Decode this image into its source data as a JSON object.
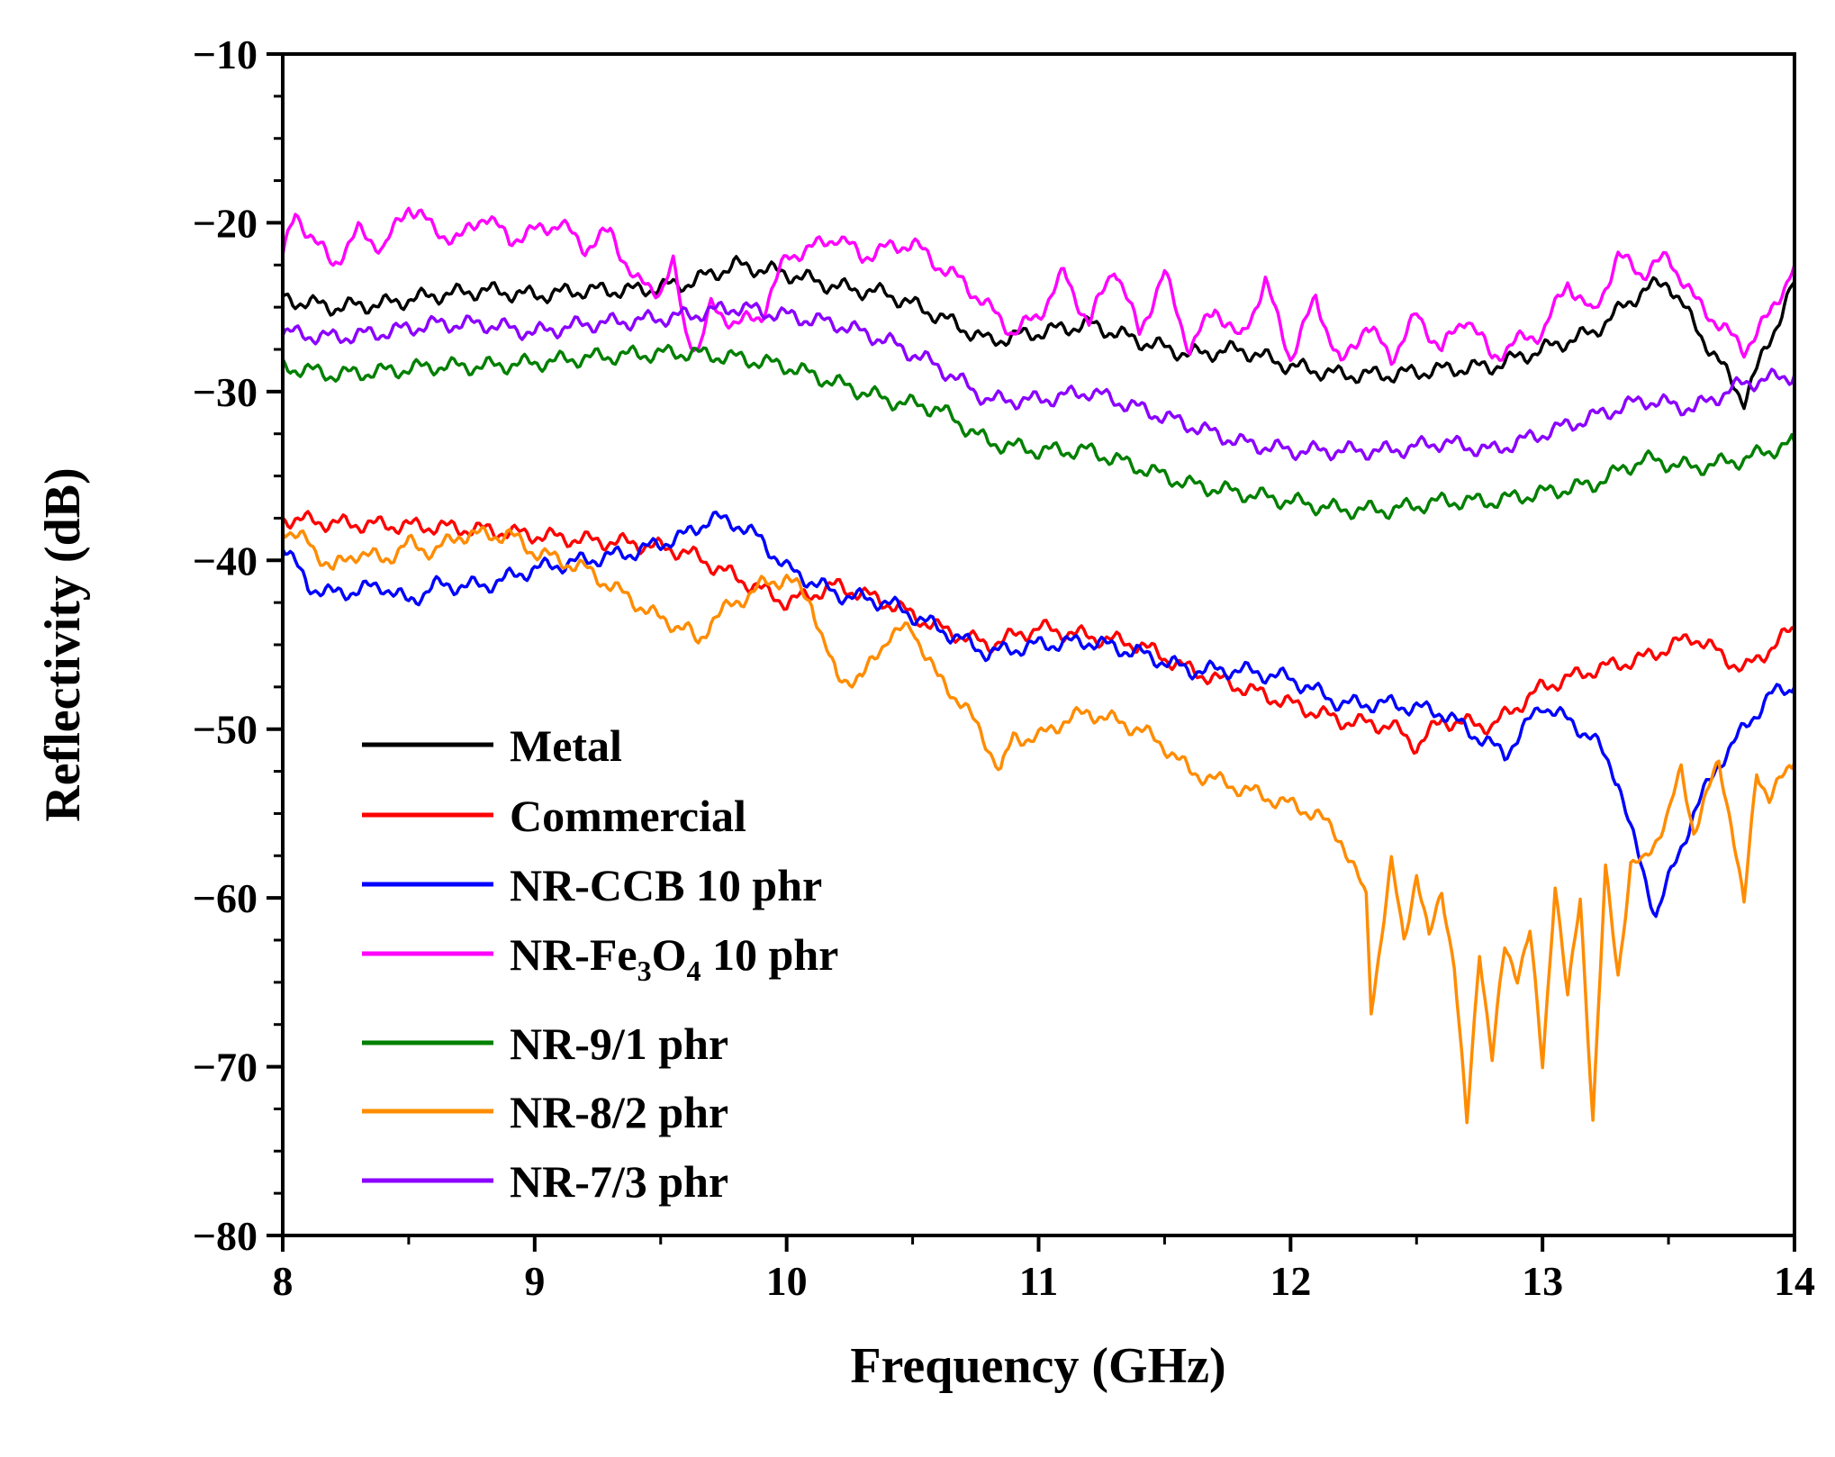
{
  "chart_data": {
    "type": "line",
    "title": "",
    "xlabel": "Frequency (GHz)",
    "ylabel": "Reflectivity (dB)",
    "xlim": [
      8,
      14
    ],
    "ylim": [
      -80,
      -10
    ],
    "x_ticks": [
      "8",
      "9",
      "10",
      "11",
      "12",
      "13",
      "14"
    ],
    "y_ticks": [
      "−10",
      "−20",
      "−30",
      "−40",
      "−50",
      "−60",
      "−70",
      "−80"
    ],
    "x_tick_values": [
      8,
      9,
      10,
      11,
      12,
      13,
      14
    ],
    "y_tick_values": [
      -10,
      -20,
      -30,
      -40,
      -50,
      -60,
      -70,
      -80
    ],
    "grid": false,
    "legend_position": "bottom-left",
    "series": [
      {
        "name": "Metal",
        "color": "#000000",
        "x": [
          8.0,
          8.2,
          8.4,
          8.6,
          8.8,
          9.0,
          9.2,
          9.4,
          9.6,
          9.8,
          10.0,
          10.2,
          10.4,
          10.6,
          10.8,
          11.0,
          11.2,
          11.4,
          11.6,
          11.8,
          12.0,
          12.2,
          12.4,
          12.6,
          12.8,
          13.0,
          13.2,
          13.4,
          13.5,
          13.6,
          13.8,
          14.0
        ],
        "y": [
          -24.5,
          -25.0,
          -24.8,
          -24.3,
          -24.0,
          -24.3,
          -24.0,
          -24.0,
          -23.6,
          -22.5,
          -23.0,
          -23.8,
          -24.2,
          -25.5,
          -27.0,
          -26.5,
          -26.0,
          -27.0,
          -27.8,
          -27.5,
          -28.5,
          -29.0,
          -29.0,
          -28.7,
          -28.5,
          -27.5,
          -26.5,
          -24.0,
          -23.5,
          -26.0,
          -30.5,
          -23.5
        ]
      },
      {
        "name": "Commercial",
        "color": "#ff0000",
        "x": [
          8.0,
          8.2,
          8.4,
          8.6,
          8.8,
          9.0,
          9.2,
          9.4,
          9.6,
          9.8,
          10.0,
          10.2,
          10.4,
          10.6,
          10.8,
          11.0,
          11.2,
          11.4,
          11.6,
          11.8,
          12.0,
          12.2,
          12.4,
          12.5,
          12.6,
          12.8,
          13.0,
          13.2,
          13.4,
          13.6,
          13.8,
          14.0
        ],
        "y": [
          -37.5,
          -37.8,
          -37.9,
          -38.0,
          -38.2,
          -38.5,
          -38.8,
          -39.0,
          -39.5,
          -41.0,
          -42.5,
          -41.5,
          -42.5,
          -44.0,
          -45.0,
          -44.0,
          -44.5,
          -45.0,
          -46.5,
          -47.5,
          -48.5,
          -49.5,
          -49.8,
          -51.0,
          -49.5,
          -49.8,
          -47.5,
          -46.5,
          -45.8,
          -44.5,
          -46.5,
          -44.0
        ]
      },
      {
        "name": "NR-CCB 10 phr",
        "color": "#0000ff",
        "x": [
          8.0,
          8.1,
          8.2,
          8.4,
          8.5,
          8.6,
          8.8,
          9.0,
          9.2,
          9.4,
          9.6,
          9.7,
          9.8,
          9.9,
          10.0,
          10.2,
          10.4,
          10.6,
          10.8,
          11.0,
          11.2,
          11.4,
          11.6,
          11.8,
          12.0,
          12.2,
          12.4,
          12.6,
          12.85,
          13.0,
          13.2,
          13.3,
          13.35,
          13.45,
          13.6,
          13.7,
          13.8,
          13.9,
          14.0
        ],
        "y": [
          -39.0,
          -41.5,
          -42.0,
          -41.5,
          -42.5,
          -41.5,
          -41.5,
          -40.5,
          -40.0,
          -39.5,
          -38.5,
          -37.5,
          -37.8,
          -38.8,
          -40.5,
          -42.0,
          -42.5,
          -44.0,
          -45.5,
          -45.0,
          -44.8,
          -45.5,
          -46.5,
          -46.5,
          -47.0,
          -48.5,
          -48.5,
          -49.0,
          -51.5,
          -48.5,
          -50.5,
          -53.0,
          -56.0,
          -61.0,
          -55.0,
          -52.0,
          -50.0,
          -48.0,
          -47.5
        ]
      },
      {
        "name": "NR-Fe3O4 10 phr",
        "color": "#ff00ff",
        "x": [
          8.0,
          8.05,
          8.1,
          8.2,
          8.3,
          8.4,
          8.5,
          8.55,
          8.6,
          8.7,
          8.8,
          8.9,
          9.0,
          9.1,
          9.2,
          9.3,
          9.4,
          9.5,
          9.55,
          9.6,
          9.65,
          9.7,
          9.8,
          9.9,
          10.0,
          10.1,
          10.2,
          10.3,
          10.4,
          10.5,
          10.6,
          10.7,
          10.8,
          10.9,
          11.0,
          11.1,
          11.2,
          11.3,
          11.4,
          11.5,
          11.6,
          11.7,
          11.8,
          11.9,
          12.0,
          12.1,
          12.2,
          12.3,
          12.4,
          12.5,
          12.6,
          12.7,
          12.8,
          12.9,
          13.0,
          13.1,
          13.2,
          13.3,
          13.4,
          13.5,
          13.6,
          13.7,
          13.8,
          13.9,
          14.0
        ],
        "y": [
          -22.0,
          -19.5,
          -20.5,
          -22.5,
          -20.5,
          -21.5,
          -19.0,
          -19.5,
          -20.5,
          -21.0,
          -19.5,
          -21.0,
          -20.5,
          -20.0,
          -21.5,
          -20.5,
          -23.5,
          -24.0,
          -22.5,
          -26.5,
          -27.5,
          -25.0,
          -26.0,
          -25.5,
          -22.0,
          -21.5,
          -20.8,
          -22.0,
          -21.5,
          -21.2,
          -22.5,
          -23.5,
          -25.0,
          -26.5,
          -25.5,
          -23.0,
          -26.0,
          -22.5,
          -26.5,
          -23.0,
          -27.5,
          -25.0,
          -27.0,
          -23.5,
          -28.0,
          -24.5,
          -28.5,
          -26.0,
          -28.0,
          -25.5,
          -27.5,
          -25.5,
          -28.0,
          -27.0,
          -26.5,
          -23.5,
          -25.5,
          -22.0,
          -23.0,
          -22.0,
          -24.5,
          -26.0,
          -27.5,
          -25.5,
          -22.5
        ]
      },
      {
        "name": "NR-9/1 phr",
        "color": "#008000",
        "x": [
          8.0,
          8.2,
          8.4,
          8.6,
          8.8,
          9.0,
          9.2,
          9.4,
          9.6,
          9.8,
          10.0,
          10.2,
          10.4,
          10.6,
          10.8,
          11.0,
          11.2,
          11.4,
          11.6,
          11.8,
          12.0,
          12.2,
          12.4,
          12.6,
          12.8,
          13.0,
          13.2,
          13.4,
          13.6,
          13.8,
          14.0
        ],
        "y": [
          -28.5,
          -29.0,
          -28.8,
          -28.5,
          -28.5,
          -28.3,
          -28.0,
          -27.8,
          -27.7,
          -28.0,
          -28.5,
          -29.5,
          -30.5,
          -31.0,
          -33.0,
          -33.5,
          -33.5,
          -34.5,
          -35.5,
          -36.0,
          -36.5,
          -37.0,
          -37.0,
          -36.5,
          -36.5,
          -36.0,
          -35.5,
          -34.0,
          -34.5,
          -34.0,
          -33.0
        ]
      },
      {
        "name": "NR-8/2 phr",
        "color": "#ff8c00",
        "x": [
          8.0,
          8.1,
          8.2,
          8.3,
          8.4,
          8.5,
          8.6,
          8.7,
          8.8,
          8.9,
          9.0,
          9.1,
          9.2,
          9.3,
          9.4,
          9.5,
          9.6,
          9.65,
          9.7,
          9.8,
          9.9,
          10.0,
          10.1,
          10.15,
          10.2,
          10.3,
          10.4,
          10.5,
          10.6,
          10.7,
          10.8,
          10.85,
          10.9,
          11.0,
          11.1,
          11.2,
          11.3,
          11.4,
          11.5,
          11.6,
          11.7,
          11.8,
          11.9,
          12.0,
          12.1,
          12.2,
          12.3,
          12.32,
          12.4,
          12.45,
          12.5,
          12.55,
          12.6,
          12.65,
          12.7,
          12.75,
          12.8,
          12.85,
          12.9,
          12.95,
          13.0,
          13.05,
          13.1,
          13.15,
          13.2,
          13.25,
          13.3,
          13.35,
          13.4,
          13.5,
          13.55,
          13.6,
          13.7,
          13.75,
          13.8,
          13.85,
          13.9,
          14.0
        ],
        "y": [
          -38.0,
          -39.0,
          -40.5,
          -39.5,
          -40.0,
          -39.0,
          -39.5,
          -38.5,
          -38.5,
          -38.5,
          -39.5,
          -40.0,
          -40.5,
          -41.5,
          -42.5,
          -43.5,
          -44.0,
          -45.0,
          -43.5,
          -42.5,
          -41.5,
          -41.0,
          -42.5,
          -45.0,
          -47.0,
          -47.0,
          -44.5,
          -44.0,
          -47.0,
          -48.5,
          -51.0,
          -52.5,
          -50.5,
          -50.5,
          -49.5,
          -49.0,
          -49.5,
          -50.0,
          -51.0,
          -52.5,
          -53.0,
          -53.5,
          -54.0,
          -54.5,
          -55.0,
          -56.5,
          -60.0,
          -66.5,
          -58.0,
          -62.5,
          -58.5,
          -62.5,
          -59.5,
          -64.0,
          -73.5,
          -63.0,
          -69.5,
          -63.0,
          -64.5,
          -62.0,
          -70.0,
          -59.0,
          -66.0,
          -60.0,
          -73.0,
          -58.5,
          -64.5,
          -58.0,
          -58.0,
          -55.0,
          -52.5,
          -56.0,
          -52.0,
          -55.5,
          -60.5,
          -52.5,
          -54.0,
          -52.0
        ]
      },
      {
        "name": "NR-7/3 phr",
        "color": "#8b00ff",
        "x": [
          8.0,
          8.2,
          8.4,
          8.6,
          8.8,
          9.0,
          9.2,
          9.4,
          9.6,
          9.8,
          10.0,
          10.2,
          10.4,
          10.6,
          10.8,
          11.0,
          11.2,
          11.4,
          11.6,
          11.8,
          12.0,
          12.2,
          12.4,
          12.6,
          12.8,
          13.0,
          13.2,
          13.4,
          13.6,
          13.8,
          14.0
        ],
        "y": [
          -26.5,
          -26.8,
          -26.5,
          -26.0,
          -26.0,
          -26.5,
          -26.0,
          -25.8,
          -25.5,
          -25.0,
          -25.5,
          -26.0,
          -27.0,
          -28.5,
          -30.5,
          -30.5,
          -30.0,
          -31.0,
          -32.0,
          -33.0,
          -33.5,
          -33.5,
          -33.5,
          -33.0,
          -33.5,
          -32.5,
          -31.5,
          -30.5,
          -31.0,
          -29.5,
          -29.0
        ]
      }
    ]
  }
}
